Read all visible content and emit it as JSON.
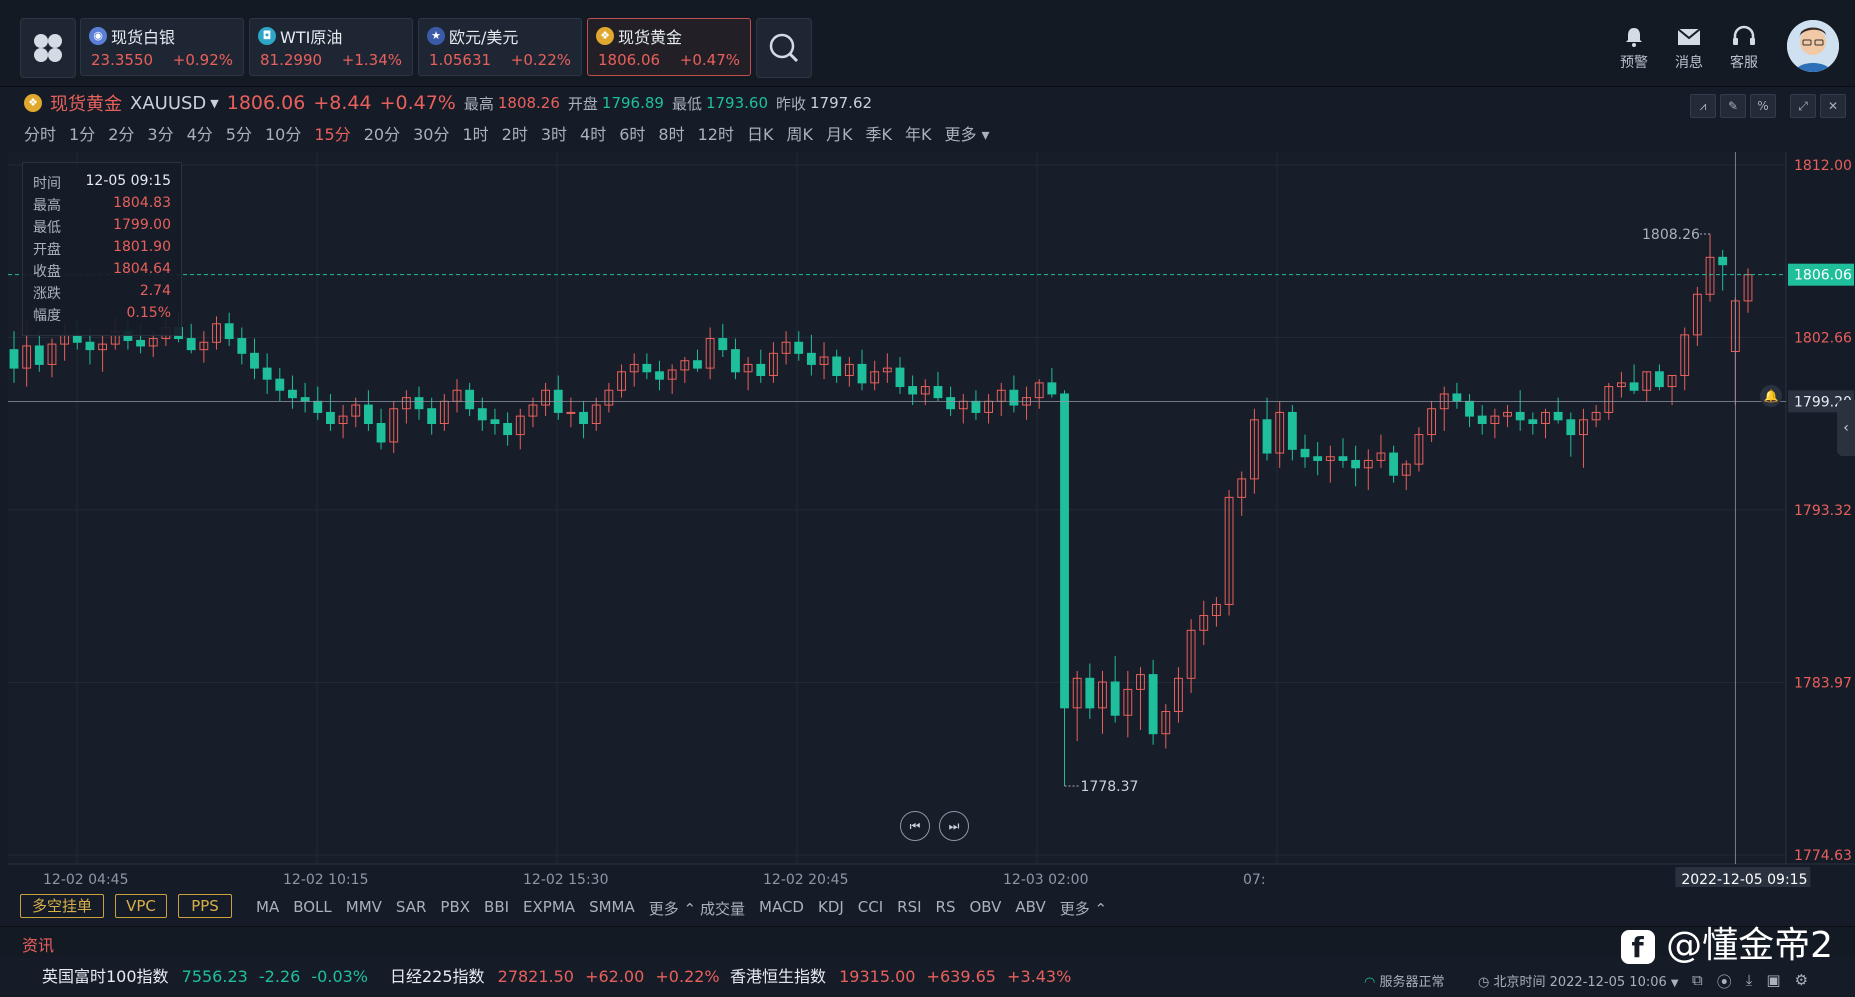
{
  "topbar": {
    "tickers": [
      {
        "name": "现货白银",
        "price": "23.3550",
        "change": "+0.92%",
        "icon": "silver-icon"
      },
      {
        "name": "WTI原油",
        "price": "81.2990",
        "change": "+1.34%",
        "icon": "oil-icon"
      },
      {
        "name": "欧元/美元",
        "price": "1.05631",
        "change": "+0.22%",
        "icon": "eu-us-flag-icon"
      },
      {
        "name": "现货黄金",
        "price": "1806.06",
        "change": "+0.47%",
        "icon": "gold-icon"
      }
    ],
    "tools": [
      {
        "label": "预警",
        "icon": "bell-icon"
      },
      {
        "label": "消息",
        "icon": "mail-icon"
      },
      {
        "label": "客服",
        "icon": "headset-icon"
      }
    ]
  },
  "symbol": {
    "name": "现货黄金",
    "code": "XAUUSD",
    "price": "1806.06",
    "change": "+8.44",
    "pct": "+0.47%",
    "high_label": "最高",
    "high": "1808.26",
    "open_label": "开盘",
    "open": "1796.89",
    "low_label": "最低",
    "low": "1793.60",
    "prev_label": "昨收",
    "prev": "1797.62"
  },
  "periods": [
    "分时",
    "1分",
    "2分",
    "3分",
    "4分",
    "5分",
    "10分",
    "15分",
    "20分",
    "30分",
    "1时",
    "2时",
    "3时",
    "4时",
    "6时",
    "8时",
    "12时",
    "日K",
    "周K",
    "月K",
    "季K",
    "年K",
    "更多"
  ],
  "selected_period": "15分",
  "tooltip": {
    "time_label": "时间",
    "time": "12-05 09:15",
    "high_label": "最高",
    "high": "1804.83",
    "low_label": "最低",
    "low": "1799.00",
    "open_label": "开盘",
    "open": "1801.90",
    "close_label": "收盘",
    "close": "1804.64",
    "chg_label": "涨跌",
    "chg": "2.74",
    "amp_label": "幅度",
    "amp": "0.15%"
  },
  "chart_data": {
    "type": "candlestick",
    "y_ticks": [
      1812.0,
      1802.66,
      1793.32,
      1783.97,
      1774.63
    ],
    "y_tick_labels": [
      "1812.00",
      "1802.66",
      "1793.32",
      "1783.97",
      "1774.63"
    ],
    "ylim": [
      1774.63,
      1812.0
    ],
    "current_price": "1806.06",
    "crosshair_price": "1799.20",
    "crosshair_time": "2022-12-05 09:15",
    "x_tick_labels": [
      "12-02 04:45",
      "12-02 10:15",
      "12-02 15:30",
      "12-02 20:45",
      "12-03 02:00",
      "07:"
    ],
    "max_marker": "1808.26",
    "min_marker": "1778.37",
    "candles": [
      [
        1802.0,
        1803.0,
        1800.2,
        1801.0
      ],
      [
        1801.0,
        1803.5,
        1800.0,
        1802.2
      ],
      [
        1802.2,
        1803.0,
        1800.8,
        1801.2
      ],
      [
        1801.2,
        1802.6,
        1800.5,
        1802.3
      ],
      [
        1802.3,
        1803.4,
        1801.4,
        1802.8
      ],
      [
        1802.8,
        1803.6,
        1802.0,
        1802.4
      ],
      [
        1802.4,
        1803.2,
        1801.2,
        1802.0
      ],
      [
        1802.0,
        1802.8,
        1800.8,
        1802.3
      ],
      [
        1802.3,
        1803.8,
        1802.0,
        1803.0
      ],
      [
        1803.0,
        1803.6,
        1802.0,
        1802.5
      ],
      [
        1802.5,
        1803.4,
        1801.8,
        1802.2
      ],
      [
        1802.2,
        1803.0,
        1801.6,
        1802.6
      ],
      [
        1802.6,
        1803.6,
        1802.2,
        1803.2
      ],
      [
        1803.2,
        1804.0,
        1802.4,
        1802.6
      ],
      [
        1802.6,
        1803.4,
        1801.8,
        1802.0
      ],
      [
        1802.0,
        1803.0,
        1801.3,
        1802.4
      ],
      [
        1802.4,
        1803.8,
        1802.0,
        1803.4
      ],
      [
        1803.4,
        1804.0,
        1802.2,
        1802.6
      ],
      [
        1802.6,
        1803.2,
        1801.2,
        1801.8
      ],
      [
        1801.8,
        1802.6,
        1800.4,
        1801.0
      ],
      [
        1801.0,
        1801.8,
        1799.6,
        1800.4
      ],
      [
        1800.4,
        1801.0,
        1799.2,
        1799.8
      ],
      [
        1799.8,
        1800.6,
        1798.8,
        1799.4
      ],
      [
        1799.4,
        1800.2,
        1798.6,
        1799.2
      ],
      [
        1799.2,
        1800.0,
        1798.2,
        1798.6
      ],
      [
        1798.6,
        1799.6,
        1797.6,
        1798.0
      ],
      [
        1798.0,
        1799.0,
        1797.2,
        1798.4
      ],
      [
        1798.4,
        1799.4,
        1797.8,
        1799.0
      ],
      [
        1799.0,
        1799.8,
        1797.6,
        1798.0
      ],
      [
        1798.0,
        1798.8,
        1796.6,
        1797.0
      ],
      [
        1797.0,
        1799.2,
        1796.4,
        1798.8
      ],
      [
        1798.8,
        1799.8,
        1798.0,
        1799.4
      ],
      [
        1799.4,
        1800.0,
        1798.2,
        1798.8
      ],
      [
        1798.8,
        1799.4,
        1797.4,
        1798.0
      ],
      [
        1798.0,
        1799.6,
        1797.6,
        1799.2
      ],
      [
        1799.2,
        1800.4,
        1798.6,
        1799.8
      ],
      [
        1799.8,
        1800.2,
        1798.4,
        1798.8
      ],
      [
        1798.8,
        1799.4,
        1797.6,
        1798.2
      ],
      [
        1798.2,
        1798.8,
        1797.4,
        1798.0
      ],
      [
        1798.0,
        1798.6,
        1796.8,
        1797.4
      ],
      [
        1797.4,
        1798.8,
        1796.6,
        1798.4
      ],
      [
        1798.4,
        1799.4,
        1797.8,
        1799.0
      ],
      [
        1799.0,
        1800.2,
        1798.4,
        1799.8
      ],
      [
        1799.8,
        1800.6,
        1798.2,
        1798.6
      ],
      [
        1798.6,
        1799.4,
        1797.8,
        1798.6
      ],
      [
        1798.6,
        1799.2,
        1797.2,
        1798.0
      ],
      [
        1798.0,
        1799.4,
        1797.6,
        1799.0
      ],
      [
        1799.0,
        1800.2,
        1798.6,
        1799.8
      ],
      [
        1799.8,
        1801.2,
        1799.4,
        1800.8
      ],
      [
        1800.8,
        1801.8,
        1800.0,
        1801.2
      ],
      [
        1801.2,
        1801.8,
        1800.4,
        1800.8
      ],
      [
        1800.8,
        1801.4,
        1799.8,
        1800.4
      ],
      [
        1800.4,
        1801.2,
        1799.6,
        1800.9
      ],
      [
        1800.9,
        1801.6,
        1800.2,
        1801.4
      ],
      [
        1801.4,
        1802.0,
        1800.8,
        1801.0
      ],
      [
        1801.0,
        1803.2,
        1800.4,
        1802.6
      ],
      [
        1802.6,
        1803.4,
        1801.6,
        1802.0
      ],
      [
        1802.0,
        1802.6,
        1800.4,
        1800.8
      ],
      [
        1800.8,
        1801.6,
        1799.8,
        1801.2
      ],
      [
        1801.2,
        1802.0,
        1800.2,
        1800.6
      ],
      [
        1800.6,
        1802.4,
        1800.2,
        1801.8
      ],
      [
        1801.8,
        1803.0,
        1801.2,
        1802.4
      ],
      [
        1802.4,
        1803.0,
        1801.4,
        1801.8
      ],
      [
        1801.8,
        1802.8,
        1800.6,
        1801.2
      ],
      [
        1801.2,
        1802.4,
        1800.4,
        1801.6
      ],
      [
        1801.6,
        1802.0,
        1800.2,
        1800.6
      ],
      [
        1800.6,
        1801.6,
        1800.0,
        1801.2
      ],
      [
        1801.2,
        1802.0,
        1799.8,
        1800.2
      ],
      [
        1800.2,
        1801.4,
        1799.8,
        1800.8
      ],
      [
        1800.8,
        1801.8,
        1800.2,
        1801.0
      ],
      [
        1801.0,
        1801.6,
        1799.6,
        1800.0
      ],
      [
        1800.0,
        1800.6,
        1799.0,
        1799.6
      ],
      [
        1799.6,
        1800.4,
        1799.0,
        1800.0
      ],
      [
        1800.0,
        1800.8,
        1799.2,
        1799.4
      ],
      [
        1799.4,
        1800.0,
        1798.4,
        1798.8
      ],
      [
        1798.8,
        1799.6,
        1798.0,
        1799.2
      ],
      [
        1799.2,
        1799.8,
        1798.2,
        1798.6
      ],
      [
        1798.6,
        1799.6,
        1798.0,
        1799.2
      ],
      [
        1799.2,
        1800.2,
        1798.4,
        1799.8
      ],
      [
        1799.8,
        1800.6,
        1798.6,
        1799.0
      ],
      [
        1799.0,
        1800.0,
        1798.2,
        1799.4
      ],
      [
        1799.4,
        1800.4,
        1798.8,
        1800.2
      ],
      [
        1800.2,
        1801.0,
        1799.4,
        1799.6
      ],
      [
        1799.6,
        1799.8,
        1778.37,
        1782.6
      ],
      [
        1782.6,
        1784.6,
        1780.8,
        1784.2
      ],
      [
        1784.2,
        1785.0,
        1782.0,
        1782.6
      ],
      [
        1782.6,
        1784.6,
        1781.2,
        1784.0
      ],
      [
        1784.0,
        1785.4,
        1781.8,
        1782.2
      ],
      [
        1782.2,
        1784.6,
        1781.0,
        1783.6
      ],
      [
        1783.6,
        1784.8,
        1781.4,
        1784.4
      ],
      [
        1784.4,
        1785.2,
        1780.6,
        1781.2
      ],
      [
        1781.2,
        1782.8,
        1780.4,
        1782.4
      ],
      [
        1782.4,
        1784.8,
        1781.8,
        1784.2
      ],
      [
        1784.2,
        1787.4,
        1783.4,
        1786.8
      ],
      [
        1786.8,
        1788.4,
        1786.0,
        1787.6
      ],
      [
        1787.6,
        1788.6,
        1787.0,
        1788.2
      ],
      [
        1788.2,
        1794.4,
        1787.6,
        1794.0
      ],
      [
        1794.0,
        1795.4,
        1793.0,
        1795.0
      ],
      [
        1795.0,
        1798.8,
        1794.2,
        1798.2
      ],
      [
        1798.2,
        1799.4,
        1796.0,
        1796.4
      ],
      [
        1796.4,
        1799.2,
        1795.6,
        1798.6
      ],
      [
        1798.6,
        1799.0,
        1796.0,
        1796.6
      ],
      [
        1796.6,
        1797.4,
        1795.6,
        1796.2
      ],
      [
        1796.2,
        1797.0,
        1795.2,
        1796.0
      ],
      [
        1796.0,
        1796.8,
        1794.8,
        1796.2
      ],
      [
        1796.2,
        1797.2,
        1795.6,
        1796.0
      ],
      [
        1796.0,
        1796.8,
        1794.6,
        1795.6
      ],
      [
        1795.6,
        1796.6,
        1794.4,
        1796.0
      ],
      [
        1796.0,
        1797.4,
        1795.6,
        1796.4
      ],
      [
        1796.4,
        1796.8,
        1794.8,
        1795.2
      ],
      [
        1795.2,
        1796.0,
        1794.4,
        1795.8
      ],
      [
        1795.8,
        1797.8,
        1795.4,
        1797.4
      ],
      [
        1797.4,
        1799.2,
        1797.0,
        1798.8
      ],
      [
        1798.8,
        1800.0,
        1797.6,
        1799.6
      ],
      [
        1799.6,
        1800.2,
        1798.8,
        1799.2
      ],
      [
        1799.2,
        1799.6,
        1797.8,
        1798.4
      ],
      [
        1798.4,
        1799.0,
        1797.4,
        1798.0
      ],
      [
        1798.0,
        1798.8,
        1797.2,
        1798.4
      ],
      [
        1798.4,
        1799.0,
        1797.8,
        1798.6
      ],
      [
        1798.6,
        1799.8,
        1797.6,
        1798.2
      ],
      [
        1798.2,
        1798.6,
        1797.4,
        1798.0
      ],
      [
        1798.0,
        1798.8,
        1797.2,
        1798.6
      ],
      [
        1798.6,
        1799.4,
        1798.0,
        1798.2
      ],
      [
        1798.2,
        1798.6,
        1796.2,
        1797.4
      ],
      [
        1797.4,
        1798.8,
        1795.6,
        1798.2
      ],
      [
        1798.2,
        1799.0,
        1797.8,
        1798.6
      ],
      [
        1798.6,
        1800.2,
        1798.2,
        1800.0
      ],
      [
        1800.0,
        1800.8,
        1799.4,
        1800.2
      ],
      [
        1800.2,
        1801.2,
        1799.6,
        1799.8
      ],
      [
        1799.8,
        1800.8,
        1799.2,
        1800.8
      ],
      [
        1800.8,
        1801.2,
        1799.8,
        1800.0
      ],
      [
        1800.0,
        1800.6,
        1799.0,
        1800.6
      ],
      [
        1800.6,
        1803.2,
        1799.8,
        1802.8
      ],
      [
        1802.8,
        1805.4,
        1802.2,
        1805.0
      ],
      [
        1805.0,
        1808.26,
        1804.6,
        1807.0
      ],
      [
        1807.0,
        1807.4,
        1805.2,
        1806.6
      ],
      [
        1801.9,
        1804.83,
        1799.0,
        1804.64
      ],
      [
        1804.64,
        1806.4,
        1804.0,
        1806.06
      ]
    ]
  },
  "controls": {
    "buttons": [
      "多空挂单",
      "VPC",
      "PPS"
    ],
    "main_indicators": [
      "MA",
      "BOLL",
      "MMV",
      "SAR",
      "PBX",
      "BBI",
      "EXPMA",
      "SMMA",
      "更多"
    ],
    "sub_indicators": [
      "成交量",
      "MACD",
      "KDJ",
      "CCI",
      "RSI",
      "RS",
      "OBV",
      "ABV",
      "更多"
    ]
  },
  "news": {
    "label": "资讯"
  },
  "indices": [
    {
      "name": "英国富时100指数",
      "value": "7556.23",
      "change": "-2.26",
      "pct": "-0.03%",
      "dir": "down"
    },
    {
      "name": "日经225指数",
      "value": "27821.50",
      "change": "+62.00",
      "pct": "+0.22%",
      "dir": "up"
    },
    {
      "name": "香港恒生指数",
      "value": "19315.00",
      "change": "+639.65",
      "pct": "+3.43%",
      "dir": "up"
    }
  ],
  "status": {
    "server": "服务器正常",
    "clock": "北京时间 2022-12-05 10:06"
  },
  "watermark": "@懂金帝2",
  "colors": {
    "up": "#e8605b",
    "down": "#1fbf9c",
    "bg": "#161c27",
    "gold": "#d8b04b"
  }
}
